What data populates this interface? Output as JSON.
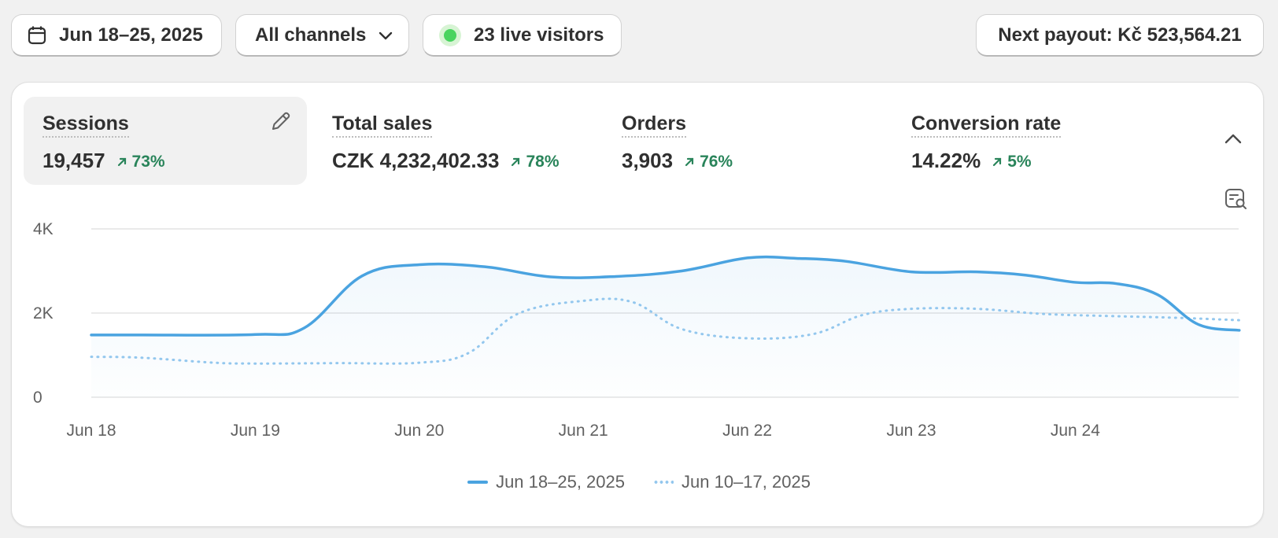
{
  "toolbar": {
    "date_range": "Jun 18–25, 2025",
    "channel": "All channels",
    "live_visitors": "23 live visitors",
    "payout": "Next payout: Kč 523,564.21"
  },
  "metrics": [
    {
      "label": "Sessions",
      "value": "19,457",
      "delta": "73%"
    },
    {
      "label": "Total sales",
      "value": "CZK 4,232,402.33",
      "delta": "78%"
    },
    {
      "label": "Orders",
      "value": "3,903",
      "delta": "76%"
    },
    {
      "label": "Conversion rate",
      "value": "14.22%",
      "delta": "5%"
    }
  ],
  "colors": {
    "accent": "#4aa3e0",
    "comparison": "#93c7ee",
    "positive": "#29845a",
    "live_dot": "#49d45f"
  },
  "icons": {
    "date": "calendar-icon",
    "channel": "chevron-down-icon",
    "live": "live-dot-icon",
    "edit": "pencil-icon",
    "collapse": "chevron-up-icon",
    "explore": "report-search-icon"
  },
  "chart_data": {
    "type": "line",
    "x": [
      "Jun 18",
      "Jun 19",
      "Jun 20",
      "Jun 21",
      "Jun 22",
      "Jun 23",
      "Jun 24"
    ],
    "ylim": [
      0,
      4000
    ],
    "yticks": [
      {
        "value": 0,
        "label": "0"
      },
      {
        "value": 2000,
        "label": "2K"
      },
      {
        "value": 4000,
        "label": "4K"
      }
    ],
    "grid": true,
    "series": [
      {
        "name": "Jun 18–25, 2025",
        "style": "solid",
        "x": [
          0,
          0.3,
          1.0,
          1.3,
          1.65,
          2.0,
          2.4,
          2.8,
          3.2,
          3.6,
          4.0,
          4.3,
          4.6,
          5.0,
          5.4,
          5.7,
          6.0,
          6.25,
          6.5,
          6.75,
          7.0
        ],
        "values": [
          1480,
          1480,
          1490,
          1650,
          2880,
          3150,
          3100,
          2860,
          2870,
          3000,
          3310,
          3300,
          3230,
          2980,
          2980,
          2900,
          2730,
          2700,
          2440,
          1730,
          1590
        ]
      },
      {
        "name": "Jun 10–17, 2025",
        "style": "dotted",
        "x": [
          0,
          0.3,
          0.75,
          1.0,
          1.5,
          2.0,
          2.3,
          2.6,
          3.0,
          3.3,
          3.6,
          4.0,
          4.4,
          4.7,
          5.0,
          5.4,
          5.8,
          6.2,
          6.6,
          7.0
        ],
        "values": [
          960,
          940,
          820,
          800,
          810,
          820,
          1050,
          1980,
          2290,
          2260,
          1620,
          1400,
          1500,
          1950,
          2100,
          2100,
          1980,
          1930,
          1890,
          1830
        ]
      }
    ]
  }
}
